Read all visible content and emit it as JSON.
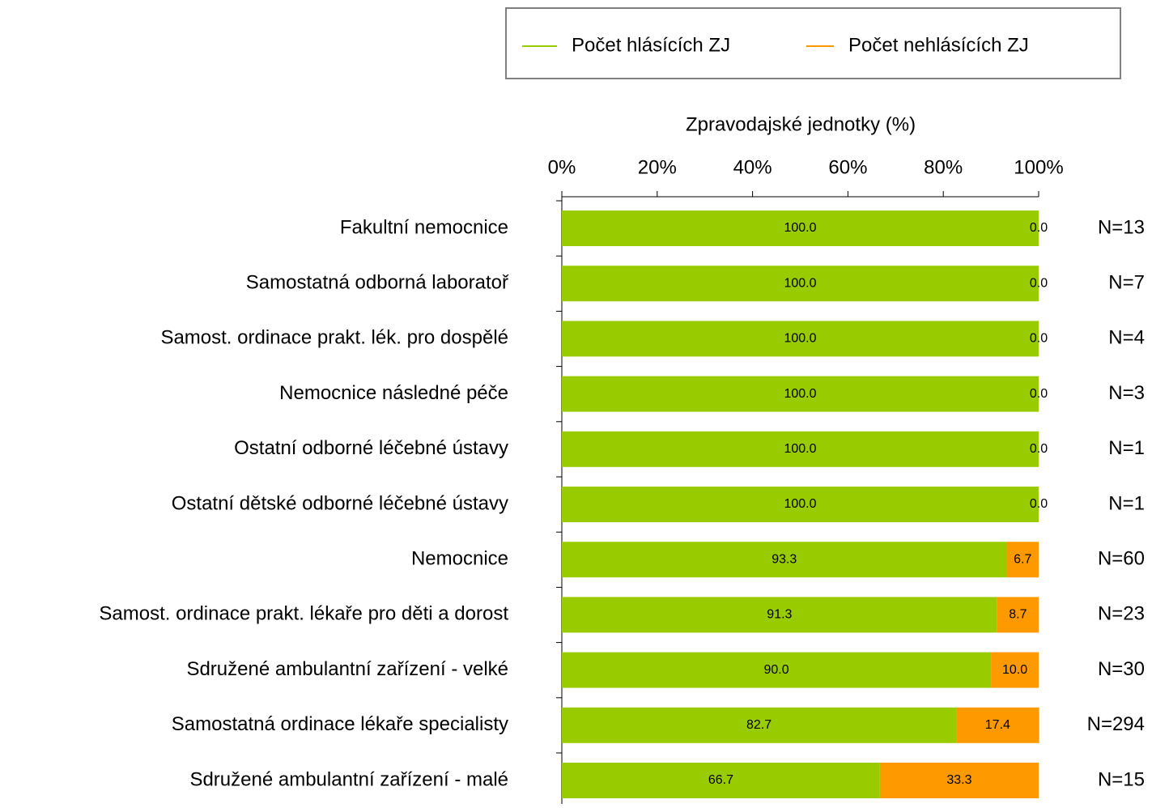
{
  "chart_data": {
    "type": "stacked_barh",
    "x_axis_label": "Zpravodajské jednotky (%)",
    "categories": [
      "Fakultní nemocnice",
      "Samostatná odborná laboratoř",
      "Samost. ordinace prakt. lék. pro dospělé",
      "Nemocnice následné péče",
      "Ostatní odborné léčebné ústavy",
      "Ostatní dětské odborné léčebné ústavy",
      "Nemocnice",
      "Samost. ordinace prakt. lékaře pro děti a dorost",
      "Sdružené ambulantní zařízení - velké",
      "Samostatná ordinace lékaře specialisty",
      "Sdružené ambulantní zařízení - malé"
    ],
    "series": [
      {
        "name": "Počet hlásících ZJ",
        "color": "#99cc00",
        "values": [
          100,
          100,
          100,
          100,
          100,
          100,
          93.3,
          91.3,
          90,
          82.7,
          66.7
        ],
        "value_labels": [
          "100.0",
          "100.0",
          "100.0",
          "100.0",
          "100.0",
          "100.0",
          "93.3",
          "91.3",
          "90.0",
          "82.7",
          "66.7"
        ]
      },
      {
        "name": "Počet nehlásících ZJ",
        "color": "#ff9900",
        "values": [
          0,
          0,
          0,
          0,
          0,
          0,
          6.7,
          8.7,
          10,
          17.4,
          33.3
        ],
        "value_labels": [
          "0.0",
          "0.0",
          "0.0",
          "0.0",
          "0.0",
          "0.0",
          "6.7",
          "8.7",
          "10.0",
          "17.4",
          "33.3"
        ]
      }
    ],
    "n_labels": [
      "N=13",
      "N=7",
      "N=4",
      "N=3",
      "N=1",
      "N=1",
      "N=60",
      "N=23",
      "N=30",
      "N=294",
      "N=15"
    ],
    "xlim": [
      0,
      100
    ],
    "xticks": [
      {
        "value": 0,
        "label": "0%"
      },
      {
        "value": 20,
        "label": "20%"
      },
      {
        "value": 40,
        "label": "40%"
      },
      {
        "value": 60,
        "label": "60%"
      },
      {
        "value": 80,
        "label": "80%"
      },
      {
        "value": 100,
        "label": "100%"
      }
    ],
    "legend": "top-right"
  }
}
